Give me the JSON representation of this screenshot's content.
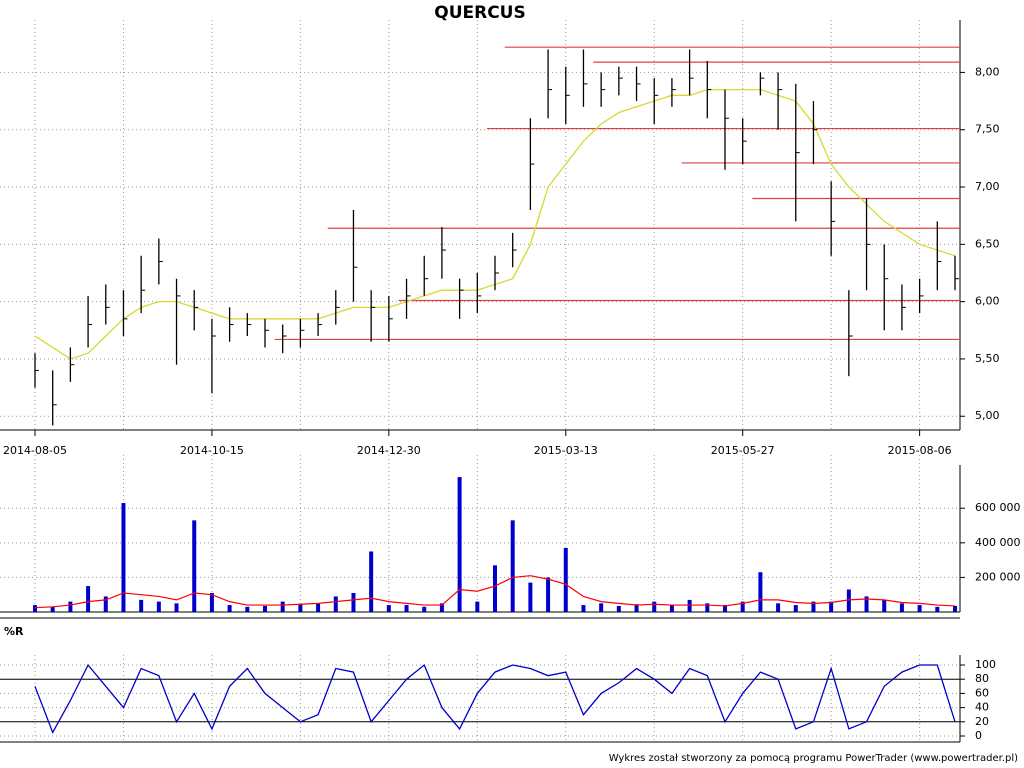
{
  "chart_data": [
    {
      "type": "ohlc",
      "title": "QUERCUS",
      "categories": [
        "2014-08-05",
        null,
        null,
        null,
        null,
        null,
        null,
        null,
        null,
        null,
        "2014-10-15",
        null,
        null,
        null,
        null,
        null,
        null,
        null,
        null,
        null,
        "2014-12-30",
        null,
        null,
        null,
        null,
        null,
        null,
        null,
        null,
        null,
        "2015-03-13",
        null,
        null,
        null,
        null,
        null,
        null,
        null,
        null,
        null,
        "2015-05-27",
        null,
        null,
        null,
        null,
        null,
        null,
        null,
        null,
        null,
        "2015-08-06",
        null,
        null
      ],
      "high": [
        5.55,
        5.4,
        5.6,
        6.05,
        6.15,
        6.1,
        6.4,
        6.55,
        6.2,
        6.1,
        5.85,
        5.95,
        5.9,
        5.85,
        5.8,
        5.85,
        5.9,
        6.1,
        6.8,
        6.1,
        6.05,
        6.2,
        6.4,
        6.65,
        6.2,
        6.25,
        6.4,
        6.6,
        7.6,
        8.2,
        8.05,
        8.2,
        8.0,
        8.05,
        8.05,
        7.95,
        7.95,
        8.2,
        8.1,
        7.85,
        7.6,
        8.0,
        8.0,
        7.9,
        7.75,
        7.05,
        6.1,
        6.9,
        6.5,
        6.15,
        6.2,
        6.7,
        6.4
      ],
      "low": [
        5.25,
        4.92,
        5.3,
        5.6,
        5.8,
        5.7,
        5.9,
        6.15,
        5.45,
        5.75,
        5.2,
        5.65,
        5.7,
        5.6,
        5.55,
        5.6,
        5.7,
        5.8,
        6.0,
        5.65,
        5.65,
        5.85,
        6.05,
        6.2,
        5.85,
        5.9,
        6.1,
        6.3,
        6.8,
        7.6,
        7.55,
        7.7,
        7.7,
        7.8,
        7.75,
        7.55,
        7.7,
        7.8,
        7.6,
        7.15,
        7.2,
        7.8,
        7.5,
        6.7,
        7.2,
        6.4,
        5.35,
        6.1,
        5.75,
        5.75,
        5.9,
        6.1,
        6.1
      ],
      "close": [
        5.4,
        5.1,
        5.45,
        5.8,
        5.95,
        5.85,
        6.1,
        6.35,
        6.05,
        5.95,
        5.7,
        5.8,
        5.8,
        5.75,
        5.7,
        5.75,
        5.8,
        5.95,
        6.3,
        5.95,
        5.85,
        6.05,
        6.2,
        6.45,
        6.1,
        6.05,
        6.25,
        6.45,
        7.2,
        7.85,
        7.8,
        7.9,
        7.85,
        7.95,
        7.9,
        7.8,
        7.85,
        7.95,
        7.85,
        7.6,
        7.4,
        7.95,
        7.85,
        7.3,
        7.5,
        6.7,
        5.7,
        6.5,
        6.2,
        5.95,
        6.05,
        6.35,
        6.2
      ],
      "color": "#000000",
      "ma": {
        "color": "#d8d830",
        "values": [
          5.7,
          5.6,
          5.5,
          5.55,
          5.7,
          5.85,
          5.95,
          6.0,
          6.0,
          5.95,
          5.9,
          5.85,
          5.85,
          5.85,
          5.85,
          5.85,
          5.85,
          5.9,
          5.95,
          5.95,
          5.95,
          6.0,
          6.05,
          6.1,
          6.1,
          6.1,
          6.15,
          6.2,
          6.5,
          7.0,
          7.2,
          7.4,
          7.55,
          7.65,
          7.7,
          7.75,
          7.8,
          7.8,
          7.85,
          7.85,
          7.85,
          7.85,
          7.8,
          7.75,
          7.55,
          7.2,
          7.0,
          6.85,
          6.7,
          6.6,
          6.5,
          6.45,
          6.4
        ]
      },
      "levels": [
        {
          "value": 8.22,
          "from": 27
        },
        {
          "value": 8.09,
          "from": 32
        },
        {
          "value": 7.51,
          "from": 26
        },
        {
          "value": 7.21,
          "from": 37
        },
        {
          "value": 6.9,
          "from": 41
        },
        {
          "value": 6.64,
          "from": 17
        },
        {
          "value": 6.01,
          "from": 21
        },
        {
          "value": 5.67,
          "from": 14
        }
      ],
      "level_color": "#e04040",
      "ylim": [
        4.88,
        8.37
      ],
      "yticks": [
        {
          "value": 5,
          "label": "5,00"
        },
        {
          "value": 5.5,
          "label": "5,50"
        },
        {
          "value": 6,
          "label": "6,00"
        },
        {
          "value": 6.5,
          "label": "6,50"
        },
        {
          "value": 7,
          "label": "7,00"
        },
        {
          "value": 7.5,
          "label": "7,50"
        },
        {
          "value": 8,
          "label": "8,00"
        }
      ],
      "grid": true
    },
    {
      "type": "bar",
      "color": "#0000cc",
      "values": [
        40000,
        30000,
        60000,
        150000,
        90000,
        630000,
        70000,
        60000,
        50000,
        530000,
        110000,
        40000,
        30000,
        35000,
        60000,
        45000,
        50000,
        90000,
        110000,
        350000,
        40000,
        40000,
        30000,
        50000,
        780000,
        60000,
        270000,
        530000,
        170000,
        200000,
        370000,
        40000,
        50000,
        35000,
        45000,
        60000,
        40000,
        70000,
        50000,
        40000,
        60000,
        230000,
        50000,
        40000,
        60000,
        60000,
        130000,
        90000,
        70000,
        50000,
        40000,
        30000,
        35000
      ],
      "ma": {
        "color": "#ff0000",
        "values": [
          25000,
          30000,
          40000,
          60000,
          70000,
          110000,
          100000,
          90000,
          70000,
          110000,
          100000,
          60000,
          40000,
          40000,
          40000,
          45000,
          50000,
          60000,
          70000,
          80000,
          60000,
          50000,
          40000,
          40000,
          130000,
          120000,
          150000,
          200000,
          210000,
          190000,
          160000,
          90000,
          60000,
          50000,
          40000,
          45000,
          40000,
          40000,
          40000,
          35000,
          50000,
          70000,
          70000,
          55000,
          50000,
          55000,
          70000,
          75000,
          70000,
          55000,
          50000,
          40000,
          35000
        ]
      },
      "ylim": [
        0,
        850000
      ],
      "yticks": [
        {
          "value": 200000,
          "label": "200 000"
        },
        {
          "value": 400000,
          "label": "400 000"
        },
        {
          "value": 600000,
          "label": "600 000"
        }
      ],
      "grid": true
    },
    {
      "type": "line",
      "title": "%R",
      "color": "#0000cc",
      "values": [
        70,
        5,
        50,
        100,
        70,
        40,
        95,
        85,
        20,
        60,
        10,
        70,
        95,
        60,
        40,
        20,
        30,
        95,
        90,
        20,
        50,
        80,
        100,
        40,
        10,
        60,
        90,
        100,
        95,
        85,
        90,
        30,
        60,
        75,
        95,
        80,
        60,
        95,
        85,
        20,
        60,
        90,
        80,
        10,
        20,
        95,
        10,
        20,
        70,
        90,
        100,
        100,
        20
      ],
      "levels": [
        20,
        80
      ],
      "ylim": [
        0,
        100
      ],
      "yticks": [
        0,
        20,
        40,
        60,
        80,
        100
      ],
      "grid": true
    }
  ],
  "footer": "Wykres został stworzony za pomocą programu PowerTrader (www.powertrader.pl)"
}
